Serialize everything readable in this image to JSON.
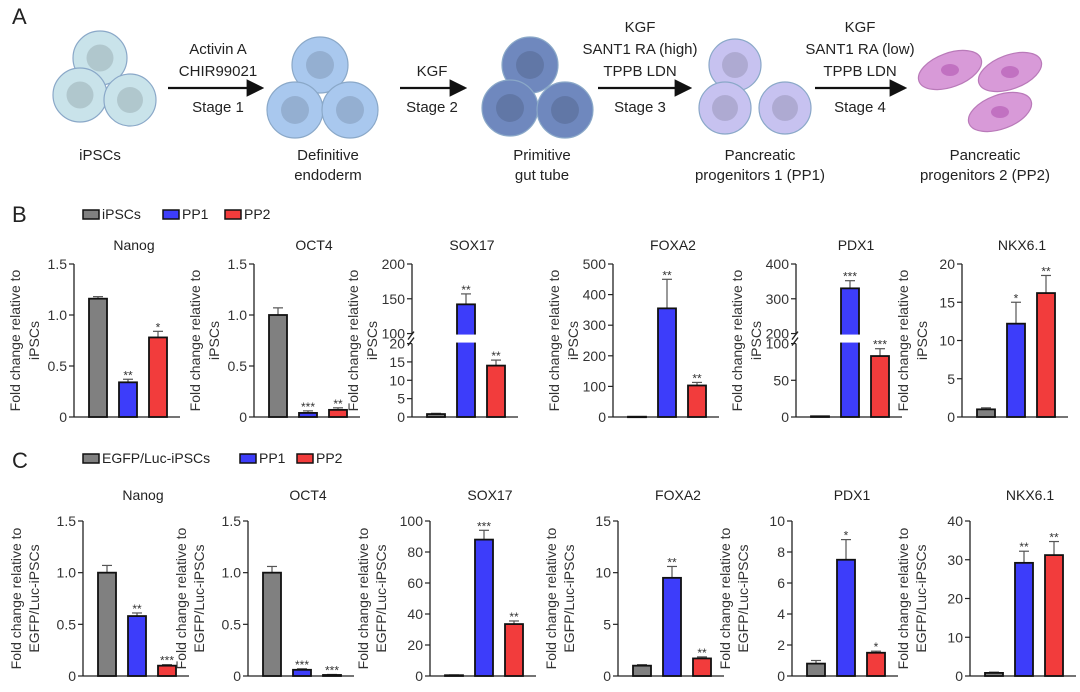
{
  "panel_a": {
    "letter": "A",
    "stages": [
      {
        "name": [
          "iPSCs"
        ]
      },
      {
        "name": [
          "Definitive",
          "endoderm"
        ]
      },
      {
        "name": [
          "Primitive",
          "gut tube"
        ]
      },
      {
        "name": [
          "Pancreatic",
          "progenitors 1 (PP1)"
        ]
      },
      {
        "name": [
          "Pancreatic",
          "progenitors 2 (PP2)"
        ]
      }
    ],
    "transitions": [
      {
        "factors": [
          "Activin A",
          "CHIR99021"
        ],
        "stage": "Stage 1"
      },
      {
        "factors": [
          "KGF"
        ],
        "stage": "Stage 2"
      },
      {
        "factors": [
          "KGF",
          "SANT1 RA (high)",
          "TPPB    LDN"
        ],
        "stage": "Stage 3"
      },
      {
        "factors": [
          "KGF",
          "SANT1 RA (low)",
          "TPPB    LDN"
        ],
        "stage": "Stage 4"
      }
    ],
    "cell_colors": [
      "#c9e3ea",
      "#a9c8ee",
      "#6f88be",
      "#c7c2f0",
      "#d89ad8"
    ]
  },
  "colors": {
    "control": "#808080",
    "PP1": "#3d3dfa",
    "PP2": "#f23c3c"
  },
  "chart_data": [
    {
      "panel": "B",
      "type": "bar",
      "legend": [
        "iPSCs",
        "PP1",
        "PP2"
      ],
      "ylabel": [
        "Fold change relative to",
        "iPSCs"
      ],
      "charts": [
        {
          "title": "Nanog",
          "ylim": [
            0,
            1.5
          ],
          "ticks": [
            0,
            0.5,
            1.0,
            1.5
          ],
          "tick_labels": [
            "0",
            "0.5",
            "1.0",
            "1.5"
          ],
          "values": [
            1.16,
            0.34,
            0.78
          ],
          "errors": [
            0.02,
            0.03,
            0.06
          ],
          "significance": [
            "",
            "**",
            "*"
          ]
        },
        {
          "title": "OCT4",
          "ylim": [
            0,
            1.5
          ],
          "ticks": [
            0,
            0.5,
            1.0,
            1.5
          ],
          "tick_labels": [
            "0",
            "0.5",
            "1.0",
            "1.5"
          ],
          "values": [
            1.0,
            0.04,
            0.07
          ],
          "errors": [
            0.07,
            0.02,
            0.02
          ],
          "significance": [
            "",
            "***",
            "**"
          ]
        },
        {
          "title": "SOX17",
          "ylim": [
            0,
            200
          ],
          "axis_break": [
            20,
            100
          ],
          "ticks": [
            0,
            5,
            10,
            15,
            20,
            100,
            150,
            200
          ],
          "tick_labels": [
            "0",
            "5",
            "10",
            "15",
            "20",
            "100",
            "150",
            "200"
          ],
          "values": [
            0.8,
            142,
            14
          ],
          "errors": [
            0.2,
            15,
            1.5
          ],
          "significance": [
            "",
            "**",
            "**"
          ]
        },
        {
          "title": "FOXA2",
          "ylim": [
            0,
            500
          ],
          "ticks": [
            0,
            100,
            200,
            300,
            400,
            500
          ],
          "tick_labels": [
            "0",
            "100",
            "200",
            "300",
            "400",
            "500"
          ],
          "values": [
            1,
            355,
            103
          ],
          "errors": [
            0,
            95,
            10
          ],
          "significance": [
            "",
            "**",
            "**"
          ]
        },
        {
          "title": "PDX1",
          "ylim": [
            0,
            400
          ],
          "axis_break": [
            100,
            200
          ],
          "ticks": [
            0,
            50,
            100,
            200,
            300,
            400
          ],
          "tick_labels": [
            "0",
            "50",
            "100",
            "200",
            "300",
            "400"
          ],
          "values": [
            1,
            330,
            83
          ],
          "errors": [
            0,
            22,
            10
          ],
          "significance": [
            "",
            "***",
            "***"
          ]
        },
        {
          "title": "NKX6.1",
          "ylim": [
            0,
            20
          ],
          "ticks": [
            0,
            5,
            10,
            15,
            20
          ],
          "tick_labels": [
            "0",
            "5",
            "10",
            "15",
            "20"
          ],
          "values": [
            1.0,
            12.2,
            16.2
          ],
          "errors": [
            0.2,
            2.8,
            2.3
          ],
          "significance": [
            "",
            "*",
            "**"
          ]
        }
      ]
    },
    {
      "panel": "C",
      "type": "bar",
      "legend": [
        "EGFP/Luc-iPSCs",
        "PP1",
        "PP2"
      ],
      "ylabel": [
        "Fold change relative to",
        "EGFP/Luc-iPSCs"
      ],
      "charts": [
        {
          "title": "Nanog",
          "ylim": [
            0,
            1.5
          ],
          "ticks": [
            0,
            0.5,
            1.0,
            1.5
          ],
          "tick_labels": [
            "0",
            "0.5",
            "1.0",
            "1.5"
          ],
          "values": [
            1.0,
            0.58,
            0.1
          ],
          "errors": [
            0.07,
            0.03,
            0.01
          ],
          "significance": [
            "",
            "**",
            "***"
          ]
        },
        {
          "title": "OCT4",
          "ylim": [
            0,
            1.5
          ],
          "ticks": [
            0,
            0.5,
            1.0,
            1.5
          ],
          "tick_labels": [
            "0",
            "0.5",
            "1.0",
            "1.5"
          ],
          "values": [
            1.0,
            0.06,
            0.01
          ],
          "errors": [
            0.06,
            0.01,
            0.005
          ],
          "significance": [
            "",
            "***",
            "***"
          ]
        },
        {
          "title": "SOX17",
          "ylim": [
            0,
            100
          ],
          "ticks": [
            0,
            20,
            40,
            60,
            80,
            100
          ],
          "tick_labels": [
            "0",
            "20",
            "40",
            "60",
            "80",
            "100"
          ],
          "values": [
            0.5,
            88,
            33.5
          ],
          "errors": [
            0.2,
            6,
            2
          ],
          "significance": [
            "",
            "***",
            "**"
          ]
        },
        {
          "title": "FOXA2",
          "ylim": [
            0,
            15
          ],
          "ticks": [
            0,
            5,
            10,
            15
          ],
          "tick_labels": [
            "0",
            "5",
            "10",
            "15"
          ],
          "values": [
            1.0,
            9.5,
            1.7
          ],
          "errors": [
            0.1,
            1.1,
            0.15
          ],
          "significance": [
            "",
            "**",
            "**"
          ]
        },
        {
          "title": "PDX1",
          "ylim": [
            0,
            10
          ],
          "ticks": [
            0,
            2,
            4,
            6,
            8,
            10
          ],
          "tick_labels": [
            "0",
            "2",
            "4",
            "6",
            "8",
            "10"
          ],
          "values": [
            0.8,
            7.5,
            1.5
          ],
          "errors": [
            0.2,
            1.3,
            0.1
          ],
          "significance": [
            "",
            "*",
            "*"
          ]
        },
        {
          "title": "NKX6.1",
          "ylim": [
            0,
            40
          ],
          "ticks": [
            0,
            10,
            20,
            30,
            40
          ],
          "tick_labels": [
            "0",
            "10",
            "20",
            "30",
            "40"
          ],
          "values": [
            0.8,
            29.2,
            31.2
          ],
          "errors": [
            0.2,
            3,
            3.5
          ],
          "significance": [
            "",
            "**",
            "**"
          ]
        }
      ]
    }
  ]
}
